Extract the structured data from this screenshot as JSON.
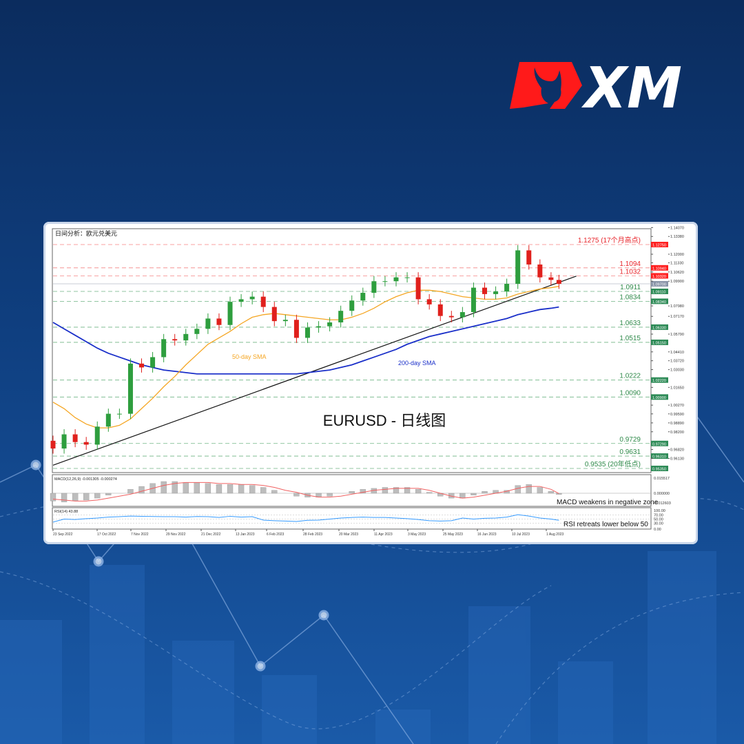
{
  "brand": {
    "name": "XM",
    "colors": {
      "red": "#ff1a1a",
      "white": "#ffffff",
      "background": "#0f3f80"
    }
  },
  "chart_data": {
    "type": "candlestick",
    "header": "日间分析：欧元兑美元",
    "title": "EURUSD - 日线图",
    "ylim": [
      0.951,
      1.1425
    ],
    "x_tick_labels": [
      "23 Sep 2022",
      "17 Oct 2022",
      "7 Nov 2022",
      "29 Nov 2022",
      "21 Dec 2022",
      "13 Jan 2023",
      "6 Feb 2023",
      "28 Feb 2023",
      "20 Mar 2023",
      "11 Apr 2023",
      "3 May 2023",
      "25 May 2023",
      "16 Jun 2023",
      "10 Jul 2023",
      "1 Aug 2023"
    ],
    "y_tick_labels": [
      "1.14070",
      "1.13380",
      "1.12000",
      "1.11330",
      "1.10620",
      "1.09900",
      "1.07980",
      "1.07170",
      "1.05790",
      "1.04410",
      "1.03720",
      "1.03030",
      "1.01650",
      "1.00270",
      "0.99590",
      "0.98890",
      "0.98200",
      "0.96820",
      "0.96130"
    ],
    "dates": [
      "2022-09-23",
      "2022-09-30",
      "2022-10-07",
      "2022-10-14",
      "2022-10-21",
      "2022-10-28",
      "2022-11-04",
      "2022-11-11",
      "2022-11-18",
      "2022-11-25",
      "2022-12-02",
      "2022-12-09",
      "2022-12-16",
      "2022-12-23",
      "2022-12-30",
      "2023-01-06",
      "2023-01-13",
      "2023-01-20",
      "2023-01-27",
      "2023-02-03",
      "2023-02-10",
      "2023-02-17",
      "2023-02-24",
      "2023-03-03",
      "2023-03-10",
      "2023-03-17",
      "2023-03-24",
      "2023-03-31",
      "2023-04-07",
      "2023-04-14",
      "2023-04-21",
      "2023-04-28",
      "2023-05-05",
      "2023-05-12",
      "2023-05-19",
      "2023-05-26",
      "2023-06-02",
      "2023-06-09",
      "2023-06-16",
      "2023-06-23",
      "2023-06-30",
      "2023-07-07",
      "2023-07-14",
      "2023-07-21",
      "2023-07-28",
      "2023-08-04",
      "2023-08-09"
    ],
    "close": [
      0.969,
      0.98,
      0.974,
      0.972,
      0.986,
      0.996,
      0.996,
      1.035,
      1.032,
      1.04,
      1.054,
      1.053,
      1.058,
      1.062,
      1.07,
      1.065,
      1.083,
      1.085,
      1.087,
      1.079,
      1.068,
      1.069,
      1.055,
      1.063,
      1.064,
      1.067,
      1.076,
      1.084,
      1.09,
      1.099,
      1.099,
      1.102,
      1.102,
      1.085,
      1.081,
      1.072,
      1.071,
      1.075,
      1.094,
      1.089,
      1.091,
      1.097,
      1.123,
      1.112,
      1.102,
      1.1,
      1.097
    ],
    "sma50": {
      "name": "50-day SMA",
      "color": "#f5a623",
      "values": [
        1.005,
        1.0,
        0.993,
        0.988,
        0.985,
        0.985,
        0.987,
        0.992,
        1.0,
        1.008,
        1.017,
        1.025,
        1.034,
        1.042,
        1.05,
        1.055,
        1.06,
        1.066,
        1.071,
        1.073,
        1.074,
        1.073,
        1.072,
        1.071,
        1.07,
        1.069,
        1.069,
        1.071,
        1.074,
        1.078,
        1.083,
        1.087,
        1.09,
        1.092,
        1.092,
        1.091,
        1.089,
        1.087,
        1.086,
        1.085,
        1.085,
        1.086,
        1.089,
        1.091,
        1.093,
        1.094,
        1.095
      ]
    },
    "sma200": {
      "name": "200-day SMA",
      "color": "#1a2fc9",
      "values": [
        1.067,
        1.062,
        1.057,
        1.052,
        1.047,
        1.043,
        1.04,
        1.037,
        1.034,
        1.032,
        1.03,
        1.029,
        1.028,
        1.027,
        1.027,
        1.027,
        1.027,
        1.027,
        1.027,
        1.027,
        1.027,
        1.027,
        1.027,
        1.028,
        1.029,
        1.03,
        1.032,
        1.034,
        1.037,
        1.04,
        1.043,
        1.046,
        1.05,
        1.053,
        1.056,
        1.058,
        1.06,
        1.062,
        1.064,
        1.066,
        1.068,
        1.07,
        1.073,
        1.075,
        1.077,
        1.078,
        1.079
      ]
    },
    "trendline": {
      "from": [
        "2022-09-23",
        0.956
      ],
      "to": [
        "2023-08-20",
        1.103
      ]
    },
    "levels": [
      {
        "price": "1.12750",
        "label": "1.1275 (17个月高点)",
        "kind": "resistance"
      },
      {
        "price": "1.10940",
        "label": "1.1094",
        "kind": "resistance"
      },
      {
        "price": "1.10320",
        "label": "1.1032",
        "kind": "resistance"
      },
      {
        "price": "1.09110",
        "label": "1.0911",
        "kind": "support"
      },
      {
        "price": "1.08340",
        "label": "1.0834",
        "kind": "support"
      },
      {
        "price": "1.06330",
        "label": "1.0633",
        "kind": "support"
      },
      {
        "price": "1.05150",
        "label": "1.0515",
        "kind": "support"
      },
      {
        "price": "1.02220",
        "label": "1.0222",
        "kind": "support"
      },
      {
        "price": "1.00900",
        "label": "1.0090",
        "kind": "support"
      },
      {
        "price": "0.97290",
        "label": "0.9729",
        "kind": "support"
      },
      {
        "price": "0.96310",
        "label": "0.9631",
        "kind": "support"
      },
      {
        "price": "0.95350",
        "label": "0.9535 (20年低点)",
        "kind": "support"
      }
    ],
    "current_price": "1.09700",
    "colors": {
      "up": "#2e9e3e",
      "down": "#e0201c",
      "resistance": "#f25a5a",
      "support": "#3f9a5a"
    },
    "macd": {
      "label": "MACD(12,26,9) -0.001305 -0.000274",
      "y_tick_labels": [
        "0.015517",
        "0.000000",
        "-0.012603"
      ],
      "ylim": [
        -0.012603,
        0.015517
      ],
      "annotation": "MACD weakens in negative zone",
      "histogram": [
        -0.008,
        -0.009,
        -0.008,
        -0.007,
        -0.005,
        -0.002,
        0.0,
        0.004,
        0.007,
        0.01,
        0.012,
        0.012,
        0.011,
        0.011,
        0.01,
        0.009,
        0.009,
        0.009,
        0.008,
        0.006,
        0.003,
        0.0,
        -0.003,
        -0.004,
        -0.004,
        -0.003,
        0.0,
        0.002,
        0.004,
        0.005,
        0.006,
        0.006,
        0.006,
        0.004,
        0.001,
        -0.003,
        -0.005,
        -0.005,
        -0.002,
        0.002,
        0.003,
        0.003,
        0.008,
        0.009,
        0.006,
        0.002,
        -0.0013
      ],
      "signal": [
        -0.006,
        -0.007,
        -0.008,
        -0.008,
        -0.007,
        -0.005,
        -0.003,
        -0.001,
        0.002,
        0.005,
        0.008,
        0.01,
        0.011,
        0.011,
        0.011,
        0.01,
        0.01,
        0.009,
        0.009,
        0.008,
        0.006,
        0.003,
        0.001,
        -0.002,
        -0.004,
        -0.004,
        -0.003,
        -0.001,
        0.001,
        0.003,
        0.004,
        0.005,
        0.005,
        0.005,
        0.003,
        0.0,
        -0.003,
        -0.005,
        -0.004,
        -0.002,
        0.0,
        0.002,
        0.005,
        0.007,
        0.007,
        0.004,
        -0.0003
      ]
    },
    "rsi": {
      "label": "RSI(14) 43.88",
      "y_tick_labels": [
        "100.00",
        "70.00",
        "50.00",
        "30.00",
        "0.00"
      ],
      "ylim": [
        0,
        100
      ],
      "annotation": "RSI retreats lower below 50",
      "values": [
        35,
        50,
        48,
        52,
        55,
        60,
        62,
        65,
        64,
        63,
        62,
        62,
        60,
        63,
        62,
        58,
        64,
        60,
        62,
        45,
        42,
        40,
        38,
        44,
        45,
        50,
        55,
        58,
        60,
        58,
        58,
        55,
        52,
        48,
        42,
        40,
        42,
        55,
        50,
        54,
        55,
        60,
        72,
        65,
        55,
        50,
        43.88
      ]
    }
  }
}
